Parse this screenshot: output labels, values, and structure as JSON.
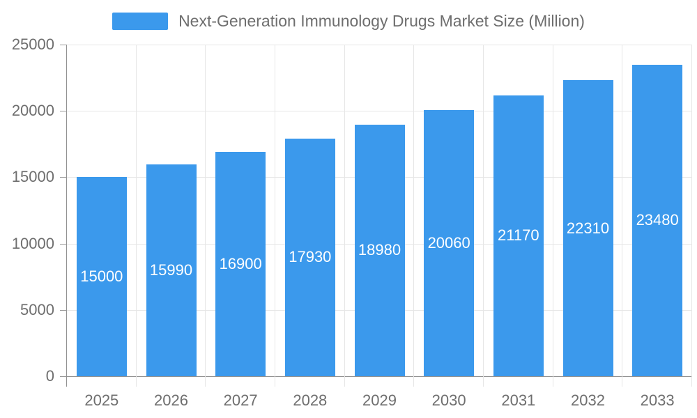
{
  "legend": {
    "label": "Next-Generation Immunology Drugs Market Size (Million)"
  },
  "chart_data": {
    "type": "bar",
    "title": "Next-Generation Immunology Drugs Market Size (Million)",
    "series_name": "Next-Generation Immunology Drugs Market Size (Million)",
    "categories": [
      "2025",
      "2026",
      "2027",
      "2028",
      "2029",
      "2030",
      "2031",
      "2032",
      "2033"
    ],
    "values": [
      15000,
      15990,
      16900,
      17930,
      18980,
      20060,
      21170,
      22310,
      23480
    ],
    "value_labels": [
      "15000",
      "15990",
      "16900",
      "17930",
      "18980",
      "20060",
      "21170",
      "22310",
      "23480"
    ],
    "xlabel": "",
    "ylabel": "",
    "ylim": [
      0,
      25000
    ],
    "y_ticks": [
      0,
      5000,
      10000,
      15000,
      20000,
      25000
    ],
    "y_tick_labels": [
      "0",
      "5000",
      "10000",
      "15000",
      "20000",
      "25000"
    ],
    "grid": true,
    "legend_position": "top",
    "value_label_position": "inside-middle",
    "colors": {
      "bar": "#3B99EC",
      "value_label": "#FFFFFF",
      "axis_line": "#929292",
      "tick": "#999999",
      "gridline": "#E6E6E6",
      "axis_text": "#6E6E6E",
      "background": "#FFFFFF"
    }
  }
}
